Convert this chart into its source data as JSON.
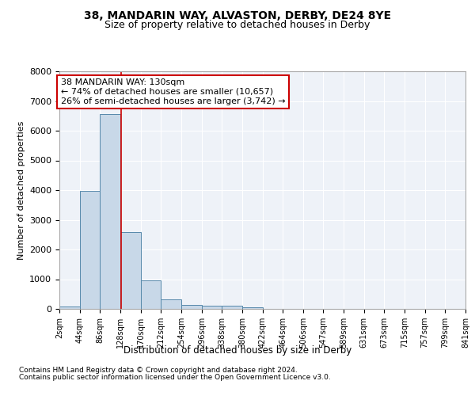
{
  "title1": "38, MANDARIN WAY, ALVASTON, DERBY, DE24 8YE",
  "title2": "Size of property relative to detached houses in Derby",
  "xlabel": "Distribution of detached houses by size in Derby",
  "ylabel": "Number of detached properties",
  "footnote1": "Contains HM Land Registry data © Crown copyright and database right 2024.",
  "footnote2": "Contains public sector information licensed under the Open Government Licence v3.0.",
  "annotation_line1": "38 MANDARIN WAY: 130sqm",
  "annotation_line2": "← 74% of detached houses are smaller (10,657)",
  "annotation_line3": "26% of semi-detached houses are larger (3,742) →",
  "bar_values": [
    75,
    3980,
    6560,
    2600,
    960,
    310,
    130,
    115,
    100,
    60,
    0,
    0,
    0,
    0,
    0,
    0,
    0,
    0,
    0,
    0
  ],
  "bin_edges": [
    2,
    44,
    86,
    128,
    170,
    212,
    254,
    296,
    338,
    380,
    422,
    464,
    506,
    547,
    589,
    631,
    673,
    715,
    757,
    799,
    841
  ],
  "tick_labels": [
    "2sqm",
    "44sqm",
    "86sqm",
    "128sqm",
    "170sqm",
    "212sqm",
    "254sqm",
    "296sqm",
    "338sqm",
    "380sqm",
    "422sqm",
    "464sqm",
    "506sqm",
    "547sqm",
    "589sqm",
    "631sqm",
    "673sqm",
    "715sqm",
    "757sqm",
    "799sqm",
    "841sqm"
  ],
  "property_size": 130,
  "ylim": [
    0,
    8000
  ],
  "bar_color": "#c8d8e8",
  "bar_edge_color": "#5588aa",
  "vline_color": "#cc0000",
  "annotation_box_color": "#cc0000",
  "background_color": "#eef2f8",
  "grid_color": "#ffffff",
  "title1_fontsize": 10,
  "title2_fontsize": 9,
  "axis_label_fontsize": 8,
  "tick_fontsize": 7,
  "annotation_fontsize": 8,
  "footnote_fontsize": 6.5
}
